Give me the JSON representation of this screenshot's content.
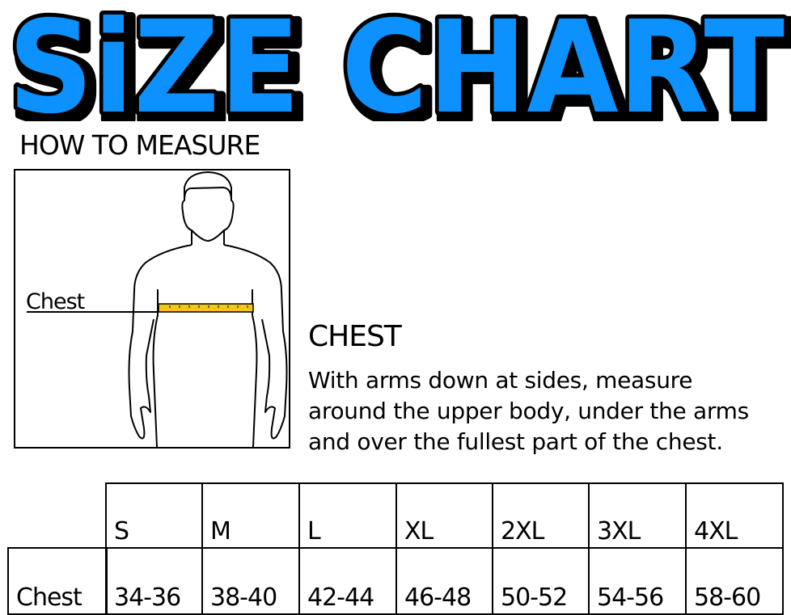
{
  "title": "SiZE CHART",
  "colors": {
    "title_fill": "#0891FF",
    "title_outline": "#000000",
    "tape": "#F5C518"
  },
  "how_to_measure": {
    "heading": "HOW TO MEASURE",
    "figure_label": "Chest"
  },
  "instructions": {
    "heading": "CHEST",
    "lines": [
      "With arms down at sides, measure",
      "around the upper body, under the arms",
      "and over the fullest part of the chest."
    ]
  },
  "size_table": {
    "sizes": [
      "S",
      "M",
      "L",
      "XL",
      "2XL",
      "3XL",
      "4XL"
    ],
    "rows": [
      {
        "label": "Chest",
        "values": [
          "34-36",
          "38-40",
          "42-44",
          "46-48",
          "50-52",
          "54-56",
          "58-60"
        ]
      }
    ]
  }
}
